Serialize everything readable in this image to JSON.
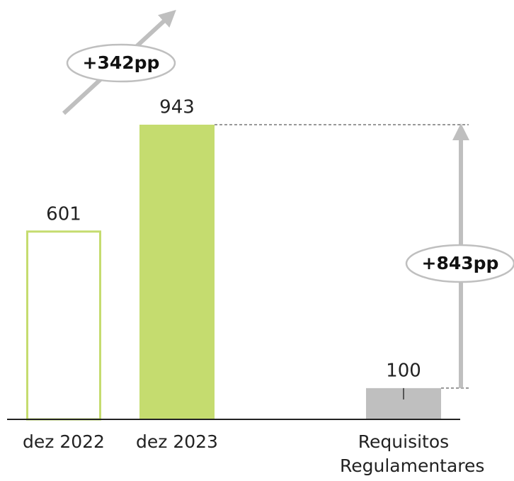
{
  "chart_data": {
    "type": "bar",
    "categories": [
      "dez 2022",
      "dez 2023",
      "Requisitos Regulamentares"
    ],
    "values": [
      601,
      943,
      100
    ],
    "colors": [
      "#c5dc6f",
      "#c5dc6f",
      "#bfbfbf"
    ],
    "bar_styles": [
      "outline",
      "solid",
      "solid"
    ],
    "annotations": [
      "+342pp",
      "+843pp"
    ]
  }
}
